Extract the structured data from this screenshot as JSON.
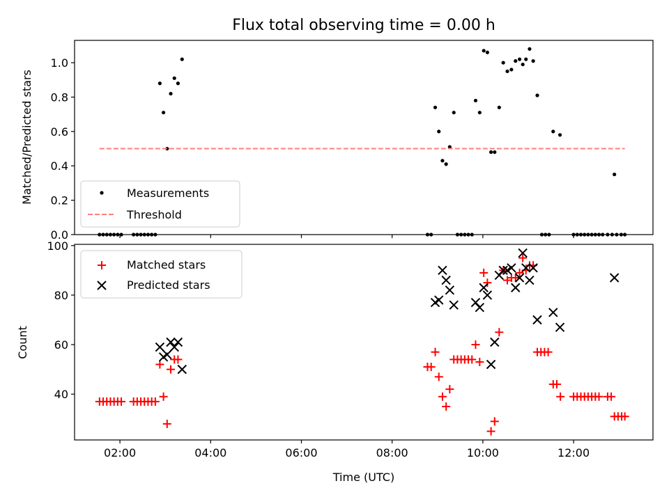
{
  "chart_data": [
    {
      "type": "scatter",
      "title": "Flux total observing time = 0.00 h",
      "xlabel": "",
      "ylabel": "Matched/Predicted stars",
      "xlim": [
        1.0,
        13.75
      ],
      "ylim": [
        0.0,
        1.13
      ],
      "yticks": [
        0.0,
        0.2,
        0.4,
        0.6,
        0.8,
        1.0
      ],
      "ytick_labels": [
        "0.0",
        "0.2",
        "0.4",
        "0.6",
        "0.8",
        "1.0"
      ],
      "xticks": [
        2,
        4,
        6,
        8,
        10,
        12
      ],
      "grid": false,
      "legend_position": "lower-left",
      "series": [
        {
          "name": "Measurements",
          "kind": "scatter",
          "marker": "dot",
          "color": "#000000",
          "points": [
            [
              1.55,
              0
            ],
            [
              1.63,
              0
            ],
            [
              1.71,
              0
            ],
            [
              1.79,
              0
            ],
            [
              1.87,
              0
            ],
            [
              1.95,
              0
            ],
            [
              2.03,
              0
            ],
            [
              2.3,
              0
            ],
            [
              2.38,
              0
            ],
            [
              2.46,
              0
            ],
            [
              2.54,
              0
            ],
            [
              2.62,
              0
            ],
            [
              2.7,
              0
            ],
            [
              2.78,
              0
            ],
            [
              2.88,
              0.88
            ],
            [
              2.96,
              0.71
            ],
            [
              3.04,
              0.5
            ],
            [
              3.12,
              0.82
            ],
            [
              3.2,
              0.91
            ],
            [
              3.28,
              0.88
            ],
            [
              3.37,
              1.02
            ],
            [
              8.78,
              0
            ],
            [
              8.86,
              0
            ],
            [
              8.95,
              0.74
            ],
            [
              9.03,
              0.6
            ],
            [
              9.11,
              0.43
            ],
            [
              9.19,
              0.41
            ],
            [
              9.27,
              0.51
            ],
            [
              9.36,
              0.71
            ],
            [
              9.44,
              0
            ],
            [
              9.52,
              0
            ],
            [
              9.6,
              0
            ],
            [
              9.68,
              0
            ],
            [
              9.76,
              0
            ],
            [
              9.84,
              0.78
            ],
            [
              9.93,
              0.71
            ],
            [
              10.02,
              1.07
            ],
            [
              10.1,
              1.06
            ],
            [
              10.18,
              0.48
            ],
            [
              10.26,
              0.48
            ],
            [
              10.36,
              0.74
            ],
            [
              10.45,
              1.0
            ],
            [
              10.54,
              0.95
            ],
            [
              10.63,
              0.96
            ],
            [
              10.72,
              1.01
            ],
            [
              10.81,
              1.02
            ],
            [
              10.88,
              0.99
            ],
            [
              10.95,
              1.02
            ],
            [
              11.03,
              1.08
            ],
            [
              11.11,
              1.01
            ],
            [
              11.2,
              0.81
            ],
            [
              11.3,
              0
            ],
            [
              11.38,
              0
            ],
            [
              11.46,
              0
            ],
            [
              11.55,
              0.6
            ],
            [
              11.7,
              0.58
            ],
            [
              12.0,
              0
            ],
            [
              12.08,
              0
            ],
            [
              12.16,
              0
            ],
            [
              12.24,
              0
            ],
            [
              12.32,
              0
            ],
            [
              12.4,
              0
            ],
            [
              12.48,
              0
            ],
            [
              12.56,
              0
            ],
            [
              12.64,
              0
            ],
            [
              12.75,
              0
            ],
            [
              12.85,
              0
            ],
            [
              12.9,
              0.35
            ],
            [
              12.95,
              0
            ],
            [
              13.05,
              0
            ],
            [
              13.13,
              0
            ]
          ]
        },
        {
          "name": "Threshold",
          "kind": "line",
          "style": "dashed",
          "color": "#ff7f7f",
          "points": [
            [
              1.55,
              0.5
            ],
            [
              13.13,
              0.5
            ]
          ]
        }
      ]
    },
    {
      "type": "scatter",
      "title": "",
      "xlabel": "Time (UTC)",
      "ylabel": "Count",
      "xlim": [
        1.0,
        13.75
      ],
      "ylim": [
        21.5,
        100.5
      ],
      "yticks": [
        40,
        60,
        80,
        100
      ],
      "ytick_labels": [
        "40",
        "60",
        "80",
        "100"
      ],
      "xticks": [
        2,
        4,
        6,
        8,
        10,
        12
      ],
      "xtick_labels": [
        "02:00",
        "04:00",
        "06:00",
        "08:00",
        "10:00",
        "12:00"
      ],
      "grid": false,
      "legend_position": "upper-left",
      "series": [
        {
          "name": "Matched stars",
          "kind": "scatter",
          "marker": "plus",
          "color": "#ff0000",
          "points": [
            [
              1.55,
              37
            ],
            [
              1.63,
              37
            ],
            [
              1.71,
              37
            ],
            [
              1.79,
              37
            ],
            [
              1.87,
              37
            ],
            [
              1.95,
              37
            ],
            [
              2.03,
              37
            ],
            [
              2.3,
              37
            ],
            [
              2.38,
              37
            ],
            [
              2.46,
              37
            ],
            [
              2.54,
              37
            ],
            [
              2.62,
              37
            ],
            [
              2.7,
              37
            ],
            [
              2.78,
              37
            ],
            [
              2.88,
              52
            ],
            [
              2.96,
              39
            ],
            [
              3.04,
              28
            ],
            [
              3.12,
              50
            ],
            [
              3.2,
              54
            ],
            [
              3.28,
              54
            ],
            [
              8.78,
              51
            ],
            [
              8.86,
              51
            ],
            [
              8.95,
              57
            ],
            [
              9.03,
              47
            ],
            [
              9.11,
              39
            ],
            [
              9.19,
              35
            ],
            [
              9.27,
              42
            ],
            [
              9.36,
              54
            ],
            [
              9.44,
              54
            ],
            [
              9.52,
              54
            ],
            [
              9.6,
              54
            ],
            [
              9.68,
              54
            ],
            [
              9.76,
              54
            ],
            [
              9.84,
              60
            ],
            [
              9.93,
              53
            ],
            [
              10.02,
              89
            ],
            [
              10.1,
              85
            ],
            [
              10.18,
              25
            ],
            [
              10.26,
              29
            ],
            [
              10.36,
              65
            ],
            [
              10.45,
              90
            ],
            [
              10.54,
              86
            ],
            [
              10.63,
              87
            ],
            [
              10.72,
              87
            ],
            [
              10.81,
              89
            ],
            [
              10.88,
              95
            ],
            [
              10.95,
              90
            ],
            [
              11.03,
              92
            ],
            [
              11.11,
              92
            ],
            [
              11.2,
              57
            ],
            [
              11.28,
              57
            ],
            [
              11.36,
              57
            ],
            [
              11.44,
              57
            ],
            [
              11.55,
              44
            ],
            [
              11.63,
              44
            ],
            [
              11.71,
              39
            ],
            [
              12.0,
              39
            ],
            [
              12.08,
              39
            ],
            [
              12.16,
              39
            ],
            [
              12.24,
              39
            ],
            [
              12.32,
              39
            ],
            [
              12.4,
              39
            ],
            [
              12.48,
              39
            ],
            [
              12.56,
              39
            ],
            [
              12.75,
              39
            ],
            [
              12.83,
              39
            ],
            [
              12.9,
              31
            ],
            [
              12.98,
              31
            ],
            [
              13.06,
              31
            ],
            [
              13.13,
              31
            ]
          ]
        },
        {
          "name": "Predicted stars",
          "kind": "scatter",
          "marker": "x",
          "color": "#000000",
          "points": [
            [
              2.88,
              59
            ],
            [
              2.96,
              55
            ],
            [
              3.04,
              56
            ],
            [
              3.12,
              61
            ],
            [
              3.2,
              59
            ],
            [
              3.28,
              61
            ],
            [
              3.37,
              50
            ],
            [
              8.95,
              77
            ],
            [
              9.03,
              78
            ],
            [
              9.11,
              90
            ],
            [
              9.19,
              86
            ],
            [
              9.27,
              82
            ],
            [
              9.36,
              76
            ],
            [
              9.84,
              77
            ],
            [
              9.93,
              75
            ],
            [
              10.02,
              83
            ],
            [
              10.1,
              80
            ],
            [
              10.18,
              52
            ],
            [
              10.26,
              61
            ],
            [
              10.36,
              88
            ],
            [
              10.45,
              90
            ],
            [
              10.54,
              90
            ],
            [
              10.63,
              91
            ],
            [
              10.72,
              83
            ],
            [
              10.81,
              87
            ],
            [
              10.88,
              97
            ],
            [
              10.95,
              91
            ],
            [
              11.03,
              86
            ],
            [
              11.11,
              91
            ],
            [
              11.2,
              70
            ],
            [
              11.55,
              73
            ],
            [
              11.7,
              67
            ],
            [
              12.9,
              87
            ]
          ]
        }
      ]
    }
  ]
}
